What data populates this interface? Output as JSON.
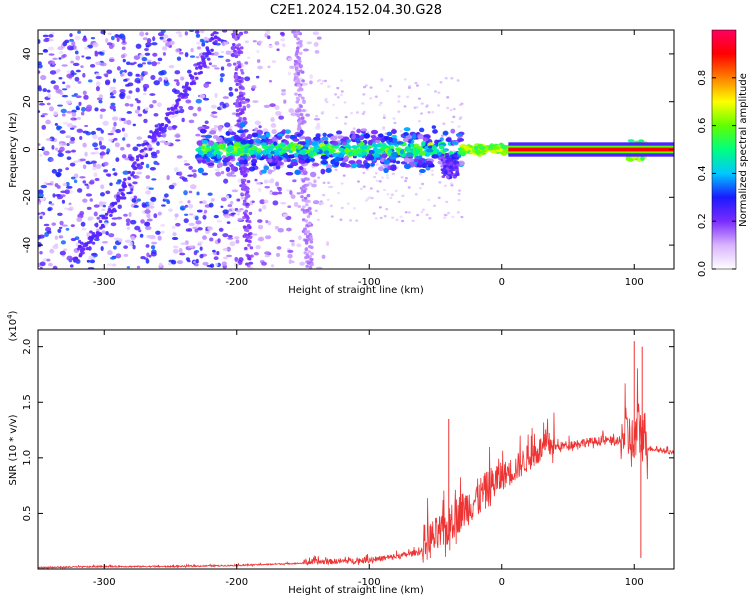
{
  "title": "C2E1.2024.152.04.30.G28",
  "chart_data": [
    {
      "type": "heatmap",
      "title": "C2E1.2024.152.04.30.G28",
      "xlabel": "Height of straight line (km)",
      "ylabel": "Frequency (Hz)",
      "xlim": [
        -350,
        130
      ],
      "ylim": [
        -50,
        50
      ],
      "xticks": [
        -300,
        -200,
        -100,
        0,
        100
      ],
      "yticks": [
        -40,
        -20,
        0,
        20,
        40
      ],
      "grid": false,
      "colorbar": {
        "label": "Normalized spectral amplitude",
        "range": [
          0,
          1
        ],
        "ticks": [
          "0.0",
          "0.2",
          "0.4",
          "0.6",
          "0.8"
        ],
        "colormap": [
          "#ffffff",
          "#d9b3ff",
          "#7a2cff",
          "#1a1aff",
          "#00c8ff",
          "#00ff80",
          "#60ff00",
          "#ffff00",
          "#ff8000",
          "#ff0000",
          "#ff0060"
        ]
      },
      "features": [
        {
          "name": "main carrier",
          "x_start": -230,
          "x_end": 130,
          "freq_hz": 0,
          "amplitude_start": 0.2,
          "amplitude_end": 0.95
        },
        {
          "name": "diagonal streak",
          "x": [
            -325,
            -310,
            -290,
            -270,
            -250,
            -230,
            -215
          ],
          "freq_hz": [
            -48,
            -38,
            -22,
            0,
            15,
            32,
            48
          ],
          "amplitude": 0.2
        },
        {
          "name": "streak",
          "x": [
            -200,
            -195,
            -190
          ],
          "freq_hz": [
            50,
            0,
            -50
          ],
          "amplitude": 0.15
        },
        {
          "name": "streak",
          "x": [
            -155,
            -150,
            -145
          ],
          "freq_hz": [
            50,
            0,
            -50
          ],
          "amplitude": 0.1
        }
      ]
    },
    {
      "type": "line",
      "xlabel": "Height of straight line (km)",
      "ylabel": "SNR (10 * v/v)",
      "y_multiplier": "(x10^4)",
      "xlim": [
        -350,
        130
      ],
      "ylim": [
        0,
        2.15
      ],
      "xticks": [
        -300,
        -200,
        -100,
        0,
        100
      ],
      "yticks": [
        "0.5",
        "1.0",
        "1.5",
        "2.0"
      ],
      "grid": false,
      "series": [
        {
          "color": "#ee3333",
          "x": [
            -350,
            -300,
            -250,
            -200,
            -150,
            -120,
            -100,
            -80,
            -60,
            -50,
            -40,
            -35,
            -30,
            -20,
            -10,
            0,
            10,
            20,
            30,
            40,
            50,
            60,
            70,
            80,
            90,
            95,
            100,
            103,
            105,
            107,
            110,
            120,
            130
          ],
          "y": [
            0.01,
            0.02,
            0.02,
            0.03,
            0.05,
            0.06,
            0.07,
            0.1,
            0.15,
            0.22,
            0.3,
            0.4,
            0.45,
            0.55,
            0.65,
            0.78,
            0.85,
            0.95,
            1.03,
            1.08,
            1.1,
            1.12,
            1.13,
            1.14,
            1.12,
            1.1,
            1.0,
            1.2,
            1.12,
            1.1,
            1.08,
            1.06,
            1.04
          ]
        }
      ],
      "peaks": [
        {
          "x": -40,
          "y": 1.35
        },
        {
          "x": 100,
          "y": 2.05
        },
        {
          "x": 106,
          "y": 2.0
        },
        {
          "x": 105,
          "y": 0.1
        }
      ]
    }
  ]
}
